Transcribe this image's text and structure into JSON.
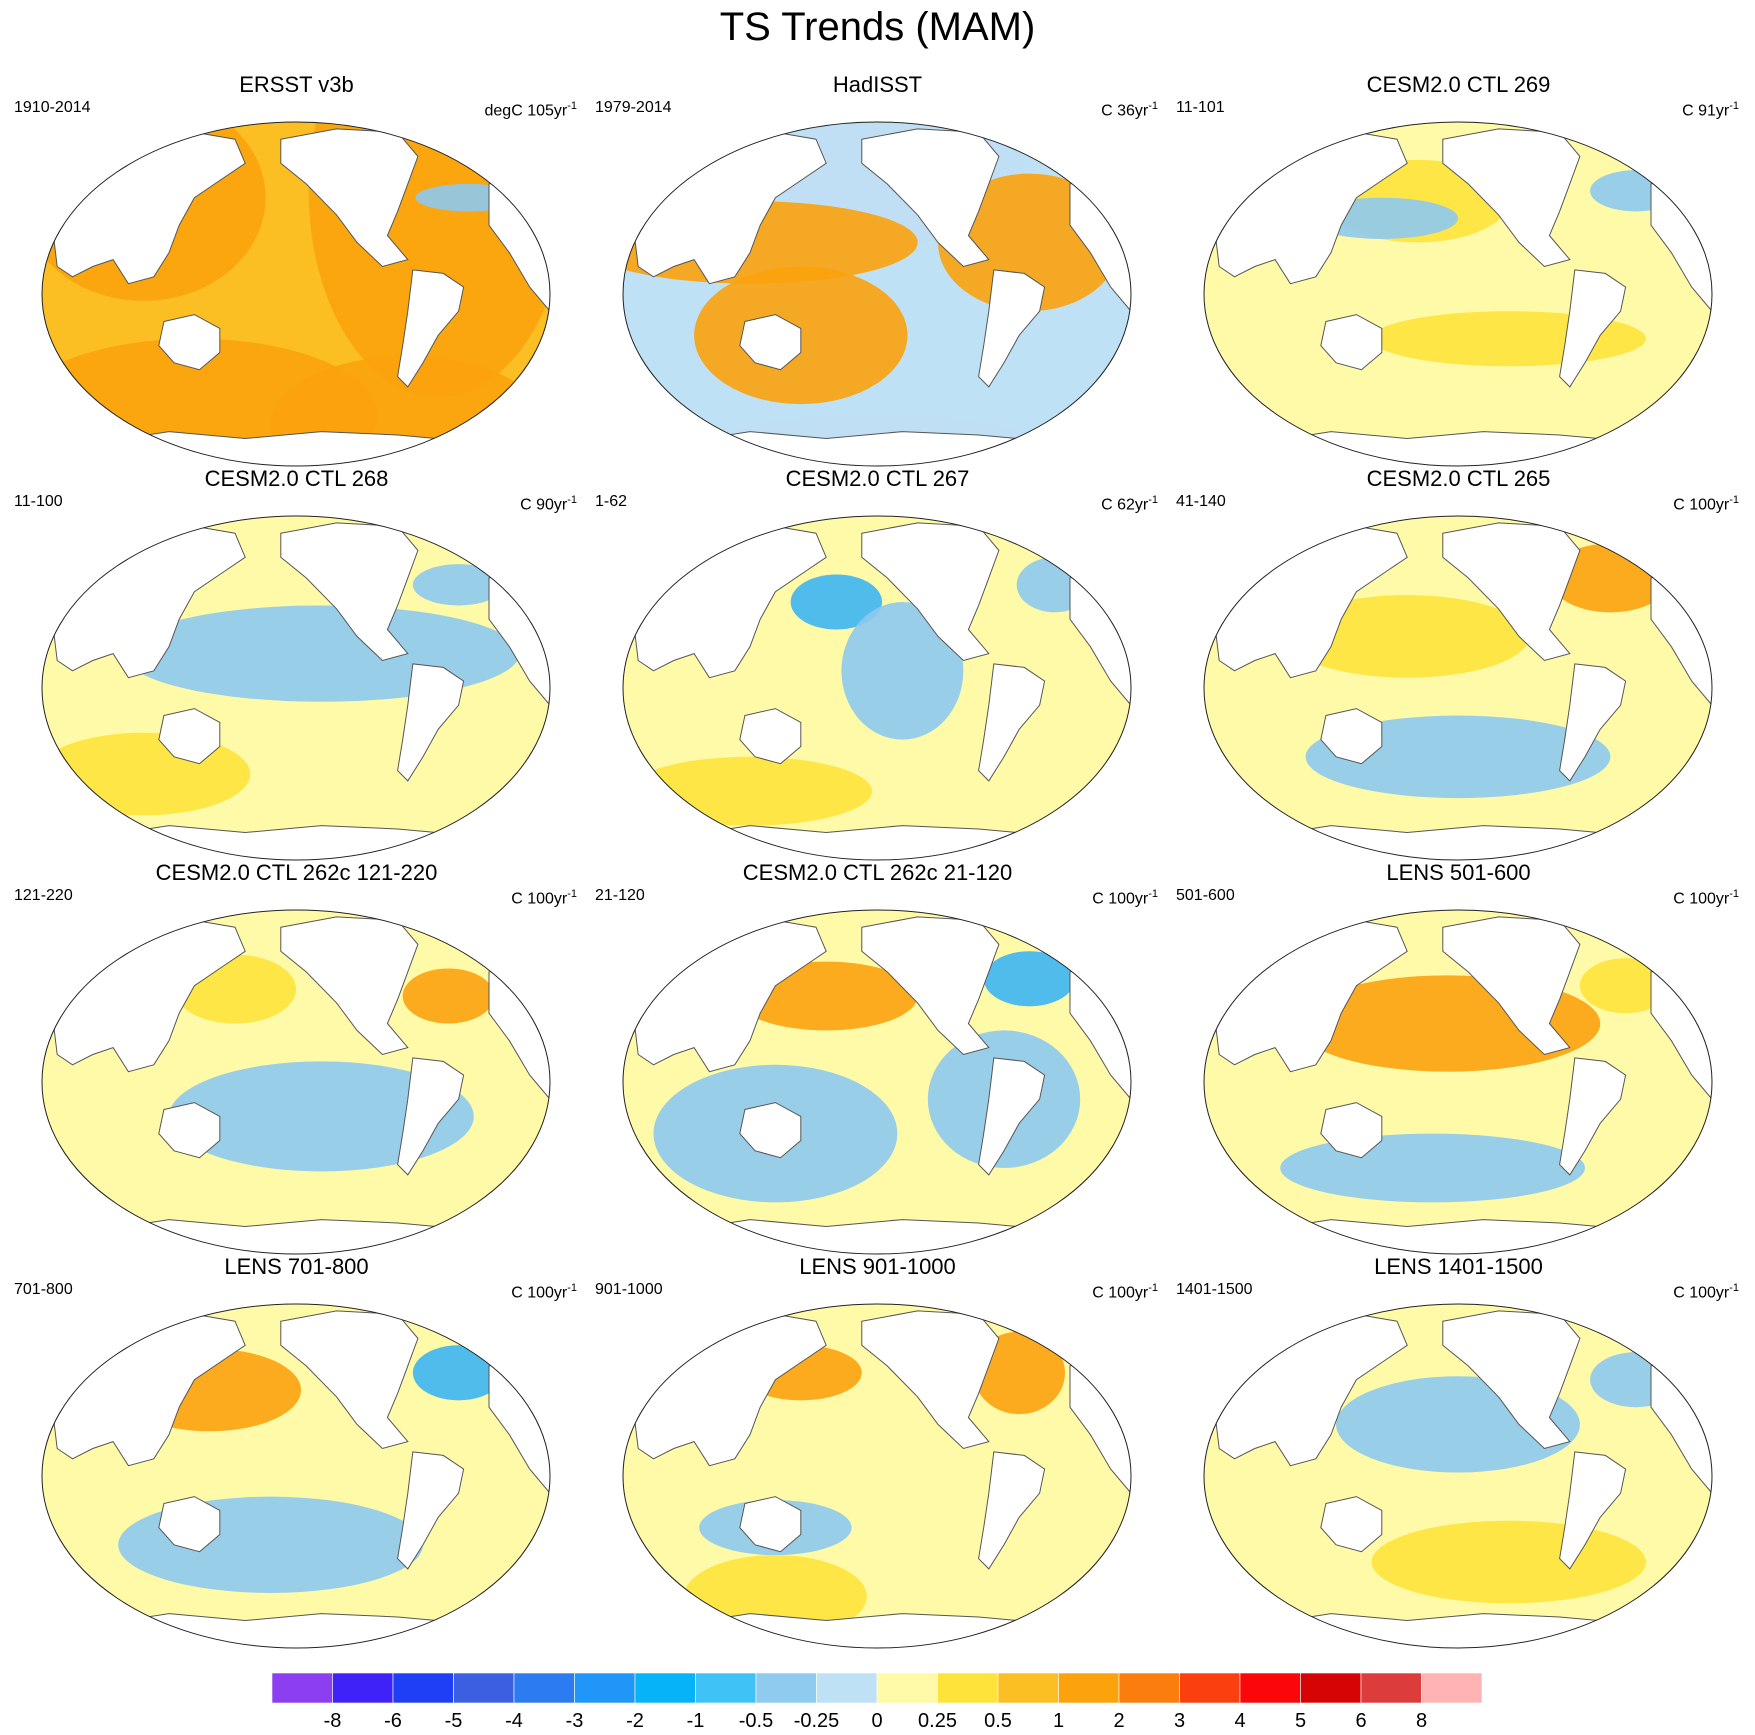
{
  "figure": {
    "title": "TS Trends (MAM)"
  },
  "panels": [
    {
      "title": "ERSST v3b",
      "period": "1910-2014",
      "units": "degC 105yr",
      "units_exp": "-1",
      "pattern": [
        [
          0.5,
          0,
          0.5
        ],
        [
          0.2,
          0.22,
          0.8,
          0.75,
          1.2,
          "#fba20d"
        ],
        [
          0.78,
          0.2,
          0.85,
          1.5,
          1.4,
          "#fba20d"
        ],
        [
          0.3,
          0.85,
          1.2,
          0.55,
          1.0,
          "#fba20d"
        ],
        [
          0.72,
          0.88,
          0.9,
          0.5,
          1.0,
          "#fba20d"
        ],
        [
          0.84,
          0.22,
          0.35,
          0.1,
          -1.0,
          "#8ec9ee"
        ]
      ]
    },
    {
      "title": "HadISST",
      "period": "1979-2014",
      "units": "C 36yr",
      "units_exp": "-1",
      "pattern": [
        [
          0.3,
          0,
          0.25
        ],
        [
          0.55,
          0.15,
          0.8,
          0.5,
          -0.8,
          "#c0dff5"
        ],
        [
          0.25,
          0.35,
          1.1,
          0.3,
          1.2,
          "#fba20d"
        ],
        [
          0.8,
          0.35,
          0.6,
          0.5,
          1.2,
          "#fba20d"
        ],
        [
          0.5,
          0.95,
          1.1,
          0.25,
          -0.6,
          "#c0dff5"
        ],
        [
          0.35,
          0.62,
          0.7,
          0.5,
          0.8,
          "#fba20d"
        ]
      ]
    },
    {
      "title": "CESM2.0 CTL 269",
      "period": "11-101",
      "units": "C 91yr",
      "units_exp": "-1",
      "pattern": [
        [
          0,
          0.35,
          0.35
        ],
        [
          0.42,
          0.23,
          0.6,
          0.3,
          0.6,
          "#fde33a"
        ],
        [
          0.6,
          0.63,
          0.9,
          0.2,
          0.5,
          "#fde33a"
        ],
        [
          0.35,
          0.28,
          0.5,
          0.15,
          -0.5,
          "#8ec9ee"
        ],
        [
          0.85,
          0.2,
          0.3,
          0.15,
          -0.8,
          "#8ec9ee"
        ]
      ]
    },
    {
      "title": "CESM2.0 CTL 268",
      "period": "11-100",
      "units": "C 90yr",
      "units_exp": "-1",
      "pattern": [
        [
          -0.1,
          0.25,
          0.4
        ],
        [
          0.2,
          0.75,
          0.7,
          0.3,
          0.8,
          "#fde33a"
        ],
        [
          0.55,
          0.4,
          1.3,
          0.35,
          -0.5,
          "#8ec9ee"
        ],
        [
          0.82,
          0.2,
          0.3,
          0.15,
          -0.8,
          "#8ec9ee"
        ]
      ]
    },
    {
      "title": "CESM2.0 CTL 267",
      "period": "1-62",
      "units": "C 62yr",
      "units_exp": "-1",
      "pattern": [
        [
          -0.05,
          0.3,
          0.35
        ],
        [
          0.42,
          0.25,
          0.3,
          0.2,
          -1.2,
          "#3db5f3"
        ],
        [
          0.55,
          0.45,
          0.4,
          0.5,
          -0.8,
          "#8ec9ee"
        ],
        [
          0.25,
          0.8,
          0.8,
          0.25,
          0.8,
          "#fde33a"
        ],
        [
          0.85,
          0.2,
          0.25,
          0.2,
          -0.8,
          "#8ec9ee"
        ]
      ]
    },
    {
      "title": "CESM2.0 CTL 265",
      "period": "41-140",
      "units": "C 100yr",
      "units_exp": "-1",
      "pattern": [
        [
          0.1,
          0.3,
          0.35
        ],
        [
          0.8,
          0.18,
          0.4,
          0.25,
          1.0,
          "#fba20d"
        ],
        [
          0.4,
          0.35,
          0.8,
          0.3,
          0.5,
          "#fde33a"
        ],
        [
          0.5,
          0.7,
          1.0,
          0.3,
          -0.5,
          "#8ec9ee"
        ]
      ]
    },
    {
      "title": "CESM2.0 CTL 262c 121-220",
      "period": "121-220",
      "units": "C 100yr",
      "units_exp": "-1",
      "pattern": [
        [
          -0.05,
          0.35,
          0.35
        ],
        [
          0.38,
          0.23,
          0.4,
          0.25,
          0.8,
          "#fde33a"
        ],
        [
          0.8,
          0.25,
          0.3,
          0.2,
          1.0,
          "#fba20d"
        ],
        [
          0.55,
          0.6,
          1.0,
          0.4,
          -0.6,
          "#8ec9ee"
        ]
      ]
    },
    {
      "title": "CESM2.0 CTL 262c 21-120",
      "period": "21-120",
      "units": "C 100yr",
      "units_exp": "-1",
      "pattern": [
        [
          -0.2,
          0.2,
          0.45
        ],
        [
          0.4,
          0.25,
          0.6,
          0.25,
          1.0,
          "#fba20d"
        ],
        [
          0.3,
          0.65,
          0.8,
          0.5,
          -0.6,
          "#8ec9ee"
        ],
        [
          0.75,
          0.55,
          0.5,
          0.5,
          -0.6,
          "#8ec9ee"
        ],
        [
          0.8,
          0.2,
          0.3,
          0.2,
          -1.0,
          "#3db5f3"
        ]
      ]
    },
    {
      "title": "LENS 501-600",
      "period": "501-600",
      "units": "C 100yr",
      "units_exp": "-1",
      "pattern": [
        [
          0.2,
          0.35,
          0.35
        ],
        [
          0.48,
          0.33,
          1.0,
          0.35,
          1.0,
          "#fba20d"
        ],
        [
          0.45,
          0.75,
          1.0,
          0.25,
          -0.6,
          "#8ec9ee"
        ],
        [
          0.83,
          0.22,
          0.3,
          0.2,
          0.6,
          "#fde33a"
        ]
      ]
    },
    {
      "title": "LENS 701-800",
      "period": "701-800",
      "units": "C 100yr",
      "units_exp": "-1",
      "pattern": [
        [
          0.3,
          0.35,
          0.35
        ],
        [
          0.33,
          0.25,
          0.6,
          0.3,
          1.0,
          "#fba20d"
        ],
        [
          0.45,
          0.7,
          1.0,
          0.35,
          -0.6,
          "#8ec9ee"
        ],
        [
          0.82,
          0.2,
          0.3,
          0.2,
          -1.0,
          "#3db5f3"
        ]
      ]
    },
    {
      "title": "LENS 901-1000",
      "period": "901-1000",
      "units": "C 100yr",
      "units_exp": "-1",
      "pattern": [
        [
          0.4,
          0.3,
          0.45
        ],
        [
          0.35,
          0.2,
          0.4,
          0.2,
          1.0,
          "#fba20d"
        ],
        [
          0.78,
          0.2,
          0.3,
          0.3,
          1.2,
          "#fba20d"
        ],
        [
          0.3,
          0.65,
          0.5,
          0.2,
          -0.6,
          "#8ec9ee"
        ],
        [
          0.3,
          0.85,
          0.6,
          0.3,
          0.7,
          "#fde33a"
        ]
      ]
    },
    {
      "title": "LENS 1401-1500",
      "period": "1401-1500",
      "units": "C 100yr",
      "units_exp": "-1",
      "pattern": [
        [
          0.1,
          0.3,
          0.35
        ],
        [
          0.5,
          0.35,
          0.8,
          0.35,
          -0.6,
          "#8ec9ee"
        ],
        [
          0.6,
          0.75,
          0.9,
          0.3,
          0.6,
          "#fde33a"
        ],
        [
          0.85,
          0.22,
          0.3,
          0.2,
          -0.7,
          "#8ec9ee"
        ]
      ]
    }
  ],
  "colorbar": {
    "colors": [
      "#8c3ff0",
      "#3f22f8",
      "#1e3ff5",
      "#3b5fe0",
      "#2d7bf0",
      "#1f96f8",
      "#06b2f8",
      "#3fc3f6",
      "#8ecbee",
      "#bee1f5",
      "#fffaa8",
      "#fde33a",
      "#fbbf24",
      "#fba20d",
      "#fb7d0e",
      "#fb3f0f",
      "#f90709",
      "#d60505",
      "#dc3c3c",
      "#ffb3b3"
    ],
    "labels": [
      "-8",
      "-6",
      "-5",
      "-4",
      "-3",
      "-2",
      "-1",
      "-0.5",
      "-0.25",
      "0",
      "0.25",
      "0.5",
      "1",
      "2",
      "3",
      "4",
      "5",
      "6",
      "8"
    ]
  }
}
